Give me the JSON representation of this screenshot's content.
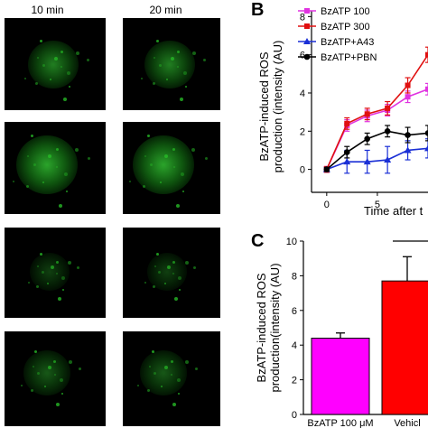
{
  "micrographs": {
    "col_headers": [
      "10 min",
      "20 min"
    ],
    "rows": 4
  },
  "panel_letters": {
    "b": "B",
    "c": "C"
  },
  "colors": {
    "magenta": "#e033e0",
    "red": "#e01010",
    "blue": "#1a2fd6",
    "black": "#000000",
    "bar_magenta": "#ff00ff",
    "bar_red": "#ff0000",
    "fluor": "#2bd12b"
  },
  "chart_data": [
    {
      "id": "B",
      "type": "line",
      "ylabel_lines": [
        "BzATP-induced ROS",
        "production (intensity (AU)"
      ],
      "xlabel": "Time after t",
      "xlim": [
        -1.5,
        10
      ],
      "ylim": [
        -1.2,
        8.3
      ],
      "yticks": [
        0,
        2,
        4,
        6,
        8
      ],
      "xticks": [
        0,
        5
      ],
      "series": [
        {
          "name": "BzATP  100",
          "color": "#e033e0",
          "marker": "square",
          "x": [
            0,
            2,
            4,
            6,
            8,
            10
          ],
          "y": [
            0,
            2.3,
            2.8,
            3.1,
            3.8,
            4.2
          ],
          "err": [
            0.15,
            0.3,
            0.3,
            0.3,
            0.3,
            0.3
          ]
        },
        {
          "name": "BzATP  300",
          "color": "#e01010",
          "marker": "square",
          "x": [
            0,
            2,
            4,
            6,
            8,
            10
          ],
          "y": [
            0,
            2.4,
            2.9,
            3.2,
            4.4,
            6.0
          ],
          "err": [
            0.15,
            0.3,
            0.3,
            0.35,
            0.4,
            0.4
          ]
        },
        {
          "name": "BzATP+A43",
          "color": "#1a2fd6",
          "marker": "triangle",
          "x": [
            0,
            2,
            4,
            6,
            8,
            10
          ],
          "y": [
            0,
            0.4,
            0.4,
            0.5,
            1.0,
            1.1
          ],
          "err": [
            0.1,
            0.6,
            0.6,
            0.7,
            0.5,
            0.5
          ]
        },
        {
          "name": "BzATP+PBN",
          "color": "#000000",
          "marker": "circle",
          "x": [
            0,
            2,
            4,
            6,
            8,
            10
          ],
          "y": [
            0,
            0.9,
            1.6,
            2.0,
            1.8,
            1.9
          ],
          "err": [
            0.1,
            0.3,
            0.3,
            0.3,
            0.4,
            0.4
          ]
        }
      ]
    },
    {
      "id": "C",
      "type": "bar",
      "ylabel_lines": [
        "BzATP-induced ROS",
        "production(intensity (AU)"
      ],
      "ylim": [
        0,
        10
      ],
      "yticks": [
        0,
        2,
        4,
        6,
        8,
        10
      ],
      "categories": [
        "BzATP 100 μM",
        "Vehicl"
      ],
      "values": [
        4.4,
        7.7
      ],
      "errors": [
        0.3,
        1.4
      ],
      "bar_colors": [
        "#ff00ff",
        "#ff0000"
      ]
    }
  ]
}
